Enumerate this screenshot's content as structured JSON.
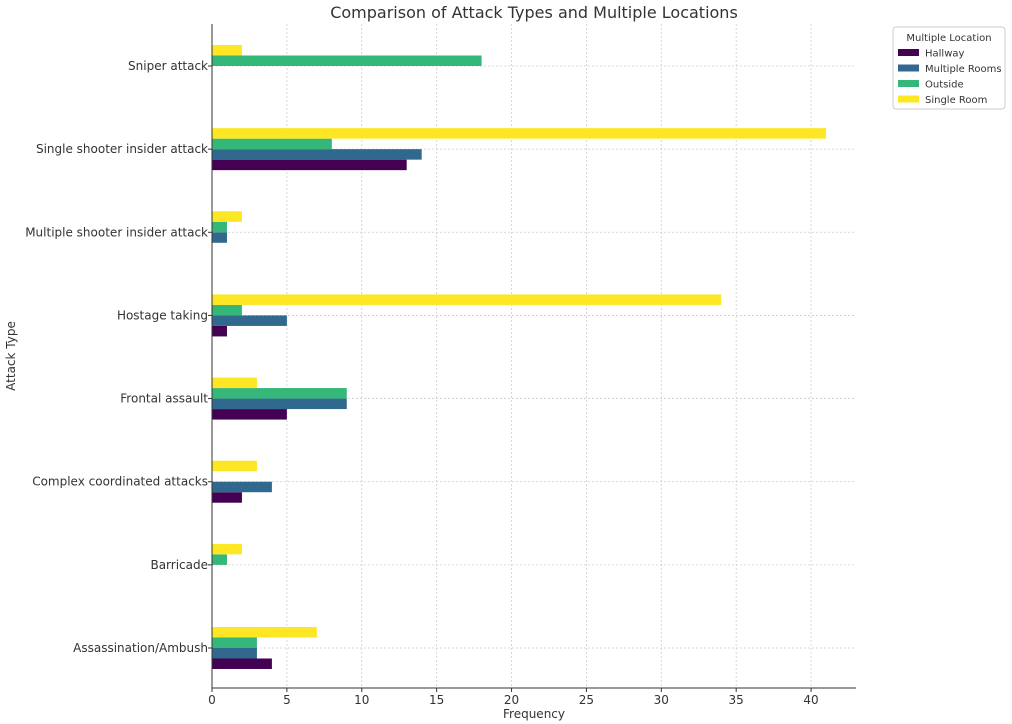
{
  "chart_data": {
    "type": "bar",
    "orientation": "horizontal",
    "title": "Comparison of Attack Types and Multiple Locations",
    "xlabel": "Frequency",
    "ylabel": "Attack Type",
    "xlim": [
      0,
      43
    ],
    "xticks": [
      0,
      5,
      10,
      15,
      20,
      25,
      30,
      35,
      40
    ],
    "grid": true,
    "legend": {
      "title": "Multiple Location",
      "position": "outside-top-right"
    },
    "categories": [
      "Assassination/Ambush",
      "Barricade",
      "Complex coordinated attacks",
      "Frontal assault",
      "Hostage taking",
      "Multiple shooter insider attack",
      "Single shooter insider attack",
      "Sniper attack"
    ],
    "series": [
      {
        "name": "Hallway",
        "color": "#440154",
        "values": [
          4,
          0,
          2,
          5,
          1,
          0,
          13,
          0
        ]
      },
      {
        "name": "Multiple Rooms",
        "color": "#31688e",
        "values": [
          3,
          0,
          4,
          9,
          5,
          1,
          14,
          0
        ]
      },
      {
        "name": "Outside",
        "color": "#35b779",
        "values": [
          3,
          1,
          0,
          9,
          2,
          1,
          8,
          18
        ]
      },
      {
        "name": "Single Room",
        "color": "#fde725",
        "values": [
          7,
          2,
          3,
          3,
          34,
          2,
          41,
          2
        ]
      }
    ]
  }
}
